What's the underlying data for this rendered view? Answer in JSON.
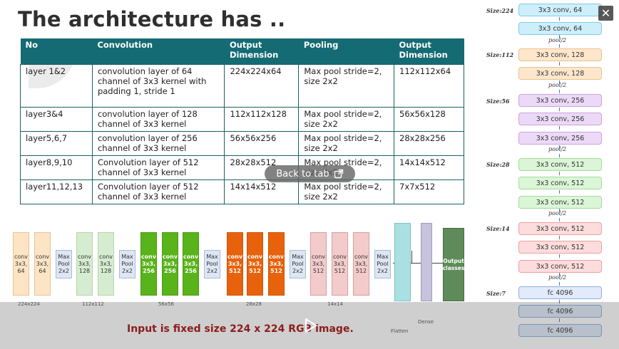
{
  "slide": {
    "title": "The architecture has ..",
    "table": {
      "headers": [
        "No",
        "Convolution",
        "Output Dimension",
        "Pooling",
        "Output Dimension"
      ],
      "rows": [
        [
          "layer 1&2",
          "convolution layer of 64 channel of 3x3 kernel with padding 1, stride 1",
          "224x224x64",
          "Max pool stride=2, size 2x2",
          "112x112x64"
        ],
        [
          "layer3&4",
          "convolution layer of 128 channel of 3x3 kernel",
          "112x112x128",
          "Max pool stride=2, size 2x2",
          "56x56x128"
        ],
        [
          "layer5,6,7",
          "convolution layer of 256 channel of 3x3 kernel",
          "56x56x256",
          "Max pool stride=2, size 2x2",
          "28x28x256"
        ],
        [
          "layer8,9,10",
          "Convolution layer of 512 channel of 3x3 kernel",
          "28x28x512",
          "Max pool stride=2, size 2x2",
          "14x14x512"
        ],
        [
          "layer11,12,13",
          "Convolution layer of 512 channel of 3x3 kernel",
          "14x14x512",
          "Max pool stride=2, size 2x2",
          "7x7x512"
        ]
      ]
    },
    "diagram": {
      "blocks": [
        {
          "kind": "conv-tan",
          "label": "conv 3x3, 64"
        },
        {
          "kind": "conv-tan",
          "label": "conv 3x3, 64"
        },
        {
          "kind": "pool",
          "label": "Max Pool 2x2"
        },
        {
          "kind": "conv-green-l",
          "label": "conv 3x3, 128"
        },
        {
          "kind": "conv-green-l",
          "label": "conv 3x3, 128"
        },
        {
          "kind": "pool",
          "label": "Max Pool 2x2"
        },
        {
          "kind": "conv-green",
          "label": "conv 3x3, 256"
        },
        {
          "kind": "conv-green",
          "label": "conv 3x3, 256"
        },
        {
          "kind": "conv-green",
          "label": "conv 3x3, 256"
        },
        {
          "kind": "pool",
          "label": "Max Pool 2x2"
        },
        {
          "kind": "conv-orange",
          "label": "conv 3x3, 512"
        },
        {
          "kind": "conv-orange",
          "label": "conv 3x3, 512"
        },
        {
          "kind": "conv-orange",
          "label": "conv 3x3, 512"
        },
        {
          "kind": "pool",
          "label": "Max Pool 2x2"
        },
        {
          "kind": "conv-pink",
          "label": "conv 3x3, 512"
        },
        {
          "kind": "conv-pink",
          "label": "conv 3x3, 512"
        },
        {
          "kind": "conv-pink",
          "label": "conv 3x3, 512"
        },
        {
          "kind": "pool",
          "label": "Max Pool 2x2"
        }
      ],
      "flatten_label": "Flatten",
      "dense_label": "Dense",
      "output_label": "Output classes",
      "dims": [
        "224x224",
        "112x112",
        "56x56",
        "28x28",
        "14x14"
      ]
    },
    "right_column": {
      "sizes": [
        "Size:224",
        "Size:112",
        "Size:56",
        "Size:28",
        "Size:14",
        "Size:7"
      ],
      "pool_label": "pool/2",
      "boxes": [
        "3x3 conv, 64",
        "3x3 conv, 64",
        "3x3 conv, 128",
        "3x3 conv, 128",
        "3x3 conv, 256",
        "3x3 conv, 256",
        "3x3 conv, 256",
        "3x3 conv, 512",
        "3x3 conv, 512",
        "3x3 conv, 512",
        "3x3 conv, 512",
        "3x3 conv, 512",
        "3x3 conv, 512",
        "fc 4096",
        "fc 4096",
        "fc 4096"
      ]
    },
    "caption": "Input is fixed size 224 x 224 RGB image."
  },
  "overlay": {
    "back_to_tab": "Back to tab",
    "close_symbol": "✕",
    "icons": {
      "close": "close-icon",
      "external": "external-link-icon",
      "play": "play-icon"
    }
  }
}
